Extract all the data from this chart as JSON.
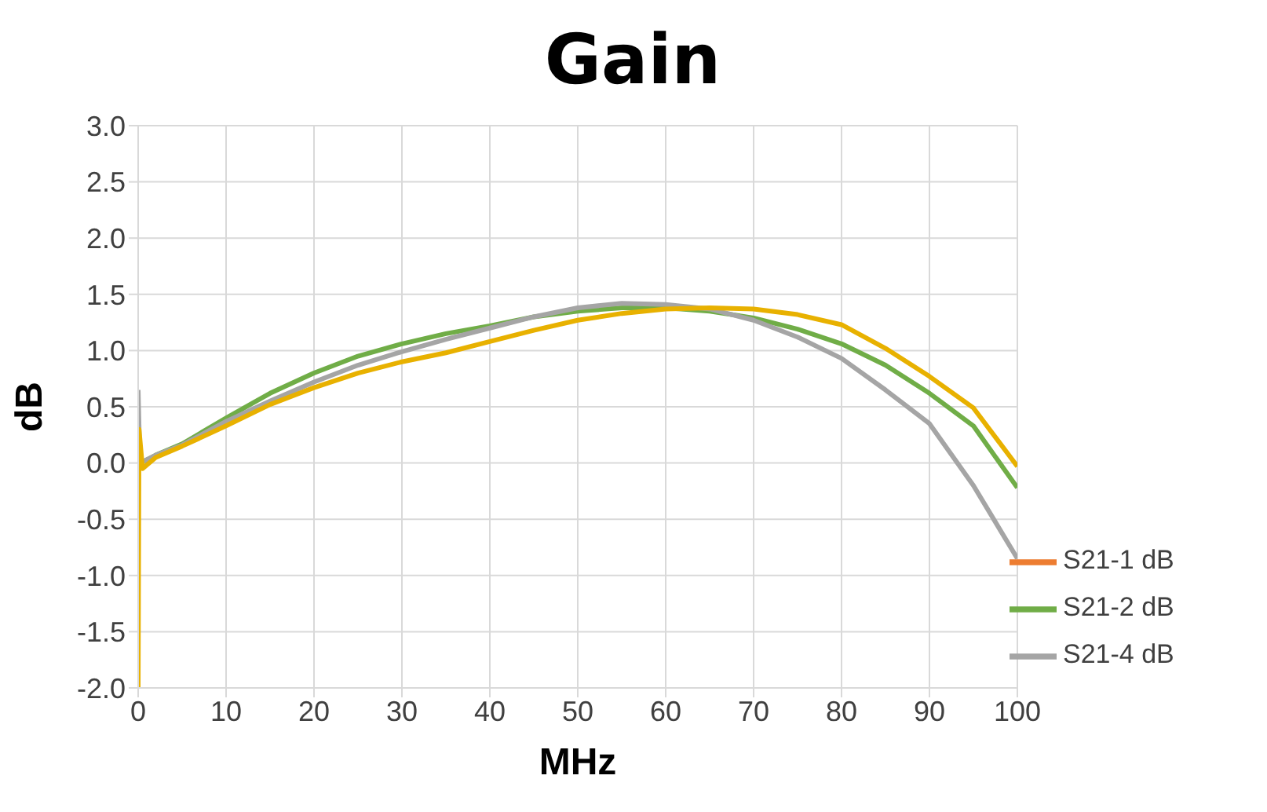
{
  "chart_data": {
    "type": "line",
    "title": "Gain",
    "xlabel": "MHz",
    "ylabel": "dB",
    "xlim": [
      0,
      100
    ],
    "xticks": [
      0,
      10,
      20,
      30,
      40,
      50,
      60,
      70,
      80,
      90,
      100
    ],
    "ylim": [
      -2,
      3
    ],
    "yticks": [
      {
        "value": -2,
        "label": "-2.0"
      },
      {
        "value": -1.5,
        "label": "-1.5"
      },
      {
        "value": -1,
        "label": "-1.0"
      },
      {
        "value": -0.5,
        "label": "-0.5"
      },
      {
        "value": 0,
        "label": "0.0"
      },
      {
        "value": 0.5,
        "label": "0.5"
      },
      {
        "value": 1,
        "label": "1.0"
      },
      {
        "value": 1.5,
        "label": "1.5"
      },
      {
        "value": 2,
        "label": "2.0"
      },
      {
        "value": 2.5,
        "label": "2.5"
      },
      {
        "value": 3,
        "label": "3.0"
      }
    ],
    "grid": true,
    "legend": "bottom right",
    "marker": "none",
    "line_style": "solid",
    "series": [
      {
        "name": "S21-1 dB",
        "color": "#ed7d31"
      },
      {
        "name": "S21-2 dB",
        "color": "#70ad47",
        "x": [
          0.3,
          2,
          5,
          10,
          15,
          20,
          25,
          30,
          35,
          40,
          45,
          50,
          55,
          60,
          65,
          70,
          75,
          80,
          85,
          90,
          95,
          100
        ],
        "values": [
          0.0,
          0.07,
          0.17,
          0.4,
          0.62,
          0.8,
          0.95,
          1.06,
          1.15,
          1.22,
          1.3,
          1.35,
          1.38,
          1.38,
          1.35,
          1.29,
          1.19,
          1.06,
          0.87,
          0.62,
          0.33,
          -0.22
        ]
      },
      {
        "name": "S21-4 dB",
        "color": "#a5a5a5",
        "x": [
          0,
          0.2,
          2,
          5,
          10,
          15,
          20,
          25,
          30,
          35,
          40,
          45,
          50,
          55,
          60,
          65,
          70,
          75,
          80,
          85,
          90,
          95,
          100
        ],
        "values": [
          0.65,
          0.0,
          0.07,
          0.16,
          0.37,
          0.55,
          0.72,
          0.87,
          0.99,
          1.1,
          1.2,
          1.3,
          1.38,
          1.42,
          1.41,
          1.37,
          1.27,
          1.12,
          0.93,
          0.65,
          0.35,
          -0.2,
          -0.85
        ]
      },
      {
        "color": "#e8b100",
        "x": [
          0,
          0.1,
          0.5,
          2,
          5,
          10,
          15,
          20,
          25,
          30,
          35,
          40,
          45,
          50,
          55,
          60,
          65,
          70,
          75,
          80,
          85,
          90,
          95,
          100
        ],
        "values": [
          -2,
          0.3,
          -0.05,
          0.05,
          0.15,
          0.33,
          0.52,
          0.67,
          0.8,
          0.9,
          0.98,
          1.08,
          1.18,
          1.27,
          1.33,
          1.37,
          1.38,
          1.37,
          1.32,
          1.23,
          1.02,
          0.77,
          0.49,
          -0.03
        ]
      }
    ]
  }
}
